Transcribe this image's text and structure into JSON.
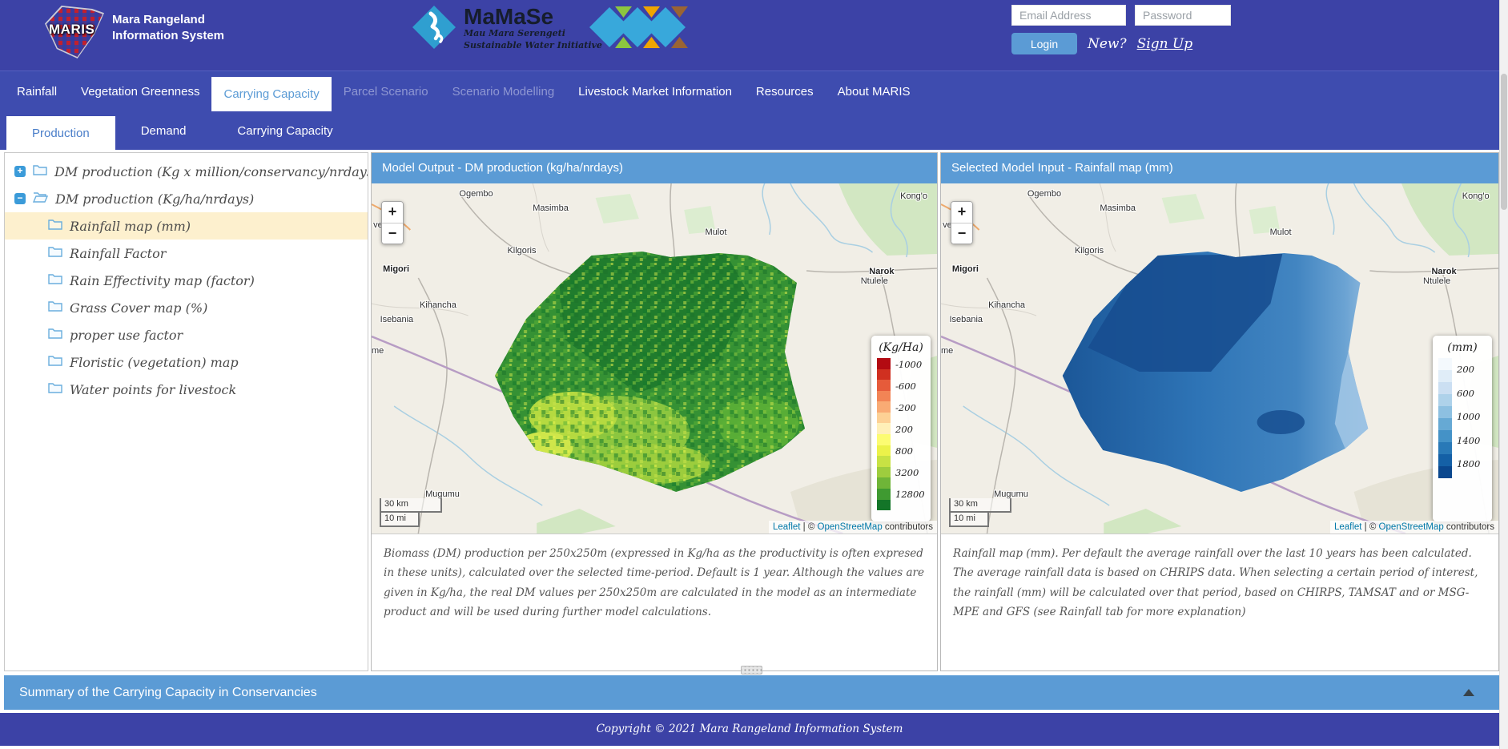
{
  "header": {
    "logo": {
      "text": "MARIS",
      "title_line1": "Mara Rangeland",
      "title_line2": "Information System"
    },
    "mamase": {
      "name": "MaMaSe",
      "tagline1": "Mau Mara Serengeti",
      "tagline2": "Sustainable Water Initiative"
    },
    "auth": {
      "email_placeholder": "Email Address",
      "password_placeholder": "Password",
      "login": "Login",
      "new_text": "New?",
      "signup": "Sign Up"
    }
  },
  "nav": {
    "items": [
      {
        "label": "Rainfall",
        "state": "normal"
      },
      {
        "label": "Vegetation Greenness",
        "state": "normal"
      },
      {
        "label": "Carrying Capacity",
        "state": "active"
      },
      {
        "label": "Parcel Scenario",
        "state": "disabled"
      },
      {
        "label": "Scenario Modelling",
        "state": "disabled"
      },
      {
        "label": "Livestock Market Information",
        "state": "normal"
      },
      {
        "label": "Resources",
        "state": "normal"
      },
      {
        "label": "About MARIS",
        "state": "normal"
      }
    ]
  },
  "subtabs": [
    {
      "label": "Production",
      "active": true
    },
    {
      "label": "Demand",
      "active": false
    },
    {
      "label": "Carrying Capacity",
      "active": false
    }
  ],
  "tree": {
    "roots": [
      {
        "toggle": "+",
        "label": "DM production (Kg x million/conservancy/nrdays)",
        "expanded": false
      },
      {
        "toggle": "−",
        "label": "DM production (Kg/ha/nrdays)",
        "expanded": true
      }
    ],
    "children": [
      {
        "label": "Rainfall map (mm)",
        "selected": true
      },
      {
        "label": "Rainfall Factor",
        "selected": false
      },
      {
        "label": "Rain Effectivity map (factor)",
        "selected": false
      },
      {
        "label": "Grass Cover map (%)",
        "selected": false
      },
      {
        "label": "proper use factor",
        "selected": false
      },
      {
        "label": "Floristic (vegetation) map",
        "selected": false
      },
      {
        "label": "Water points for livestock",
        "selected": false
      }
    ]
  },
  "panels": [
    {
      "title": "Model Output - DM production (kg/ha/nrdays)",
      "zoom_in": "+",
      "zoom_out": "−",
      "scale_km": "30 km",
      "scale_mi": "10 mi",
      "legend": {
        "title": "(Kg/Ha)",
        "labels": [
          "-1000",
          "-600",
          "-200",
          "200",
          "800",
          "3200",
          "12800"
        ],
        "colors": [
          "#b30b12",
          "#d03020",
          "#e65b3a",
          "#f28455",
          "#f9ab74",
          "#fdd195",
          "#fff0b8",
          "#fcfc72",
          "#ecf24a",
          "#c8e244",
          "#9ecd3e",
          "#6fb538",
          "#3f9a31",
          "#137528"
        ]
      },
      "attribution": {
        "leaflet": "Leaflet",
        "middle": " | © ",
        "osm": "OpenStreetMap",
        "suffix": " contributors"
      },
      "description": "Biomass (DM) production per 250x250m (expressed in Kg/ha as the productivity is often expresed in these units), calculated over the selected time-period. Default is 1 year. Although the values are given in Kg/ha, the real DM values per 250x250m are calculated in the model as an intermediate product and will be used during further model calculations."
    },
    {
      "title": "Selected Model Input - Rainfall map (mm)",
      "zoom_in": "+",
      "zoom_out": "−",
      "scale_km": "30 km",
      "scale_mi": "10 mi",
      "legend": {
        "title": "(mm)",
        "labels": [
          "200",
          "600",
          "1000",
          "1400",
          "1800"
        ],
        "colors": [
          "#f4f9fd",
          "#e0edf8",
          "#cbdff2",
          "#aed2ea",
          "#8dc0e1",
          "#66a9d4",
          "#4492c7",
          "#2979b7",
          "#1460a6",
          "#0a478e"
        ]
      },
      "attribution": {
        "leaflet": "Leaflet",
        "middle": " | © ",
        "osm": "OpenStreetMap",
        "suffix": " contributors"
      },
      "description": "Rainfall map (mm). Per default the average rainfall over the last 10 years has been calculated. The average rainfall data is based on CHRIPS data. When selecting a certain period of interest, the rainfall (mm) will be calculated over that period, based on CHIRPS, TAMSAT and or MSG-MPE and GFS (see Rainfall tab for more explanation)"
    }
  ],
  "map": {
    "labels": [
      {
        "text": "Ogembo"
      },
      {
        "text": "Masimba"
      },
      {
        "text": "Mulot"
      },
      {
        "text": "Kong'o"
      },
      {
        "text": "vendo"
      },
      {
        "text": "Migori"
      },
      {
        "text": "Kilgoris"
      },
      {
        "text": "Narok"
      },
      {
        "text": "Ntulele"
      },
      {
        "text": "Kihancha"
      },
      {
        "text": "Isebania"
      },
      {
        "text": "Mugumu"
      },
      {
        "text": "me"
      }
    ]
  },
  "summary": {
    "title": "Summary of the Carrying Capacity in Conservancies",
    "collapse_icon": "up-arrow"
  },
  "footer": {
    "copyright": "Copyright © 2021 Mara Rangeland Information System"
  },
  "colors": {
    "header_blue": "#3c42a6",
    "nav_blue": "#3e4caf",
    "panel_blue": "#5b9bd5",
    "highlight_yellow": "#fdf0ce"
  }
}
